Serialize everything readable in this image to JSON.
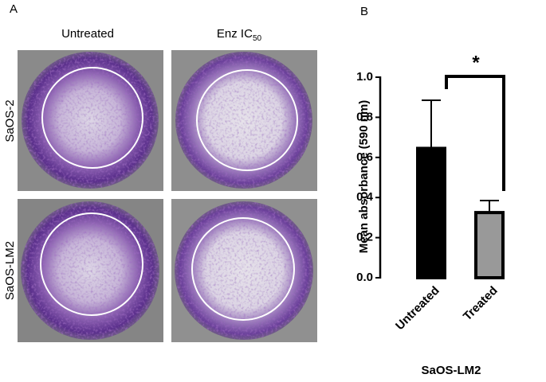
{
  "panel_a": {
    "label": "A",
    "columns": [
      {
        "text": "Untreated"
      },
      {
        "text": "Enz IC",
        "subscript": "50"
      }
    ],
    "rows": [
      "SaOS-2",
      "SaOS-LM2"
    ]
  },
  "chart_data": {
    "type": "bar",
    "panel_label": "B",
    "categories": [
      "Untreated",
      "Treated"
    ],
    "values": [
      0.645,
      0.325
    ],
    "errors": [
      0.24,
      0.06
    ],
    "colors": [
      "#000000",
      "#999999"
    ],
    "ylabel": "Mean absorbance  (590 nm)",
    "xlabel": "SaOS-LM2",
    "annotation": "*",
    "ylim": [
      0,
      1.0
    ],
    "yticks": [
      {
        "value": 0,
        "label": "0.0"
      },
      0.2,
      0.4,
      0.6,
      0.8,
      {
        "value": 1.0,
        "label": "1.0"
      }
    ]
  }
}
